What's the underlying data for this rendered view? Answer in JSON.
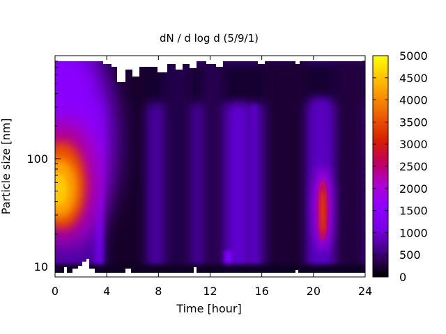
{
  "chart_data": {
    "type": "heatmap",
    "title": "dN / d log d (5/9/1)",
    "xlabel": "Time [hour]",
    "ylabel": "Particle size [nm]",
    "xlim": [
      0,
      24
    ],
    "x_ticks": [
      0,
      4,
      8,
      12,
      16,
      20,
      24
    ],
    "x_tick_labels": [
      "0",
      "4",
      "8",
      "12",
      "16",
      "20",
      "24"
    ],
    "ylim": [
      8,
      900
    ],
    "y_scale": "log",
    "y_ticks": [
      10,
      100
    ],
    "y_tick_labels": [
      "10",
      "100"
    ],
    "colorbar": {
      "range": [
        0,
        5000
      ],
      "ticks": [
        0,
        500,
        1000,
        1500,
        2000,
        2500,
        3000,
        3500,
        4000,
        4500,
        5000
      ],
      "tick_labels": [
        "0",
        "500",
        "1000",
        "1500",
        "2000",
        "2500",
        "3000",
        "3500",
        "4000",
        "4500",
        "5000"
      ],
      "palette": [
        "#000000",
        "#4b0096",
        "#8a00ff",
        "#c40080",
        "#e83c00",
        "#ffb000",
        "#ffff00"
      ]
    },
    "features": [
      {
        "description_value": "peak",
        "time": 0.3,
        "size_nm": 52,
        "value": 4400
      },
      {
        "time": 20.8,
        "size_nm": 30,
        "value": 2800
      }
    ],
    "grid": false
  }
}
